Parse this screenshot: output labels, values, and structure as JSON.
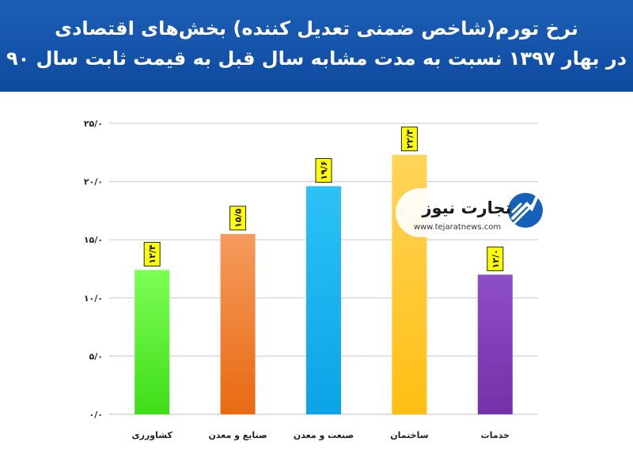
{
  "header": {
    "title_line1": "نرخ تورم(شاخص ضمنی تعدیل کننده) بخش‌های اقتصادی",
    "title_line2": "در بهار ۱۳۹۷  نسبت به مدت مشابه سال قبل به قیمت ثابت سال ۹۰"
  },
  "logo": {
    "brand": "تجارت نیوز",
    "url": "www.tejaratnews.com"
  },
  "chart_data": {
    "type": "bar",
    "categories": [
      "کشاورزی",
      "صنایع و معدن",
      "صنعت و معدن",
      "ساختمان",
      "خدمات"
    ],
    "values": [
      12.4,
      15.5,
      19.6,
      22.3,
      12.0
    ],
    "data_labels": [
      "۱۲/۴",
      "۱۵/۵",
      "۱۹/۶",
      "۲۲/۳",
      "۱۲/۰"
    ],
    "yticks": [
      0,
      5,
      10,
      15,
      20,
      25
    ],
    "ytick_labels": [
      "۰/۰",
      "۵/۰",
      "۱۰/۰",
      "۱۵/۰",
      "۲۰/۰",
      "۲۵/۰"
    ],
    "ylim": [
      0,
      25
    ],
    "grid": true,
    "bar_colors": [
      [
        "#7dff55",
        "#3fdc1a"
      ],
      [
        "#f59b5e",
        "#e86a12"
      ],
      [
        "#2cc2f7",
        "#0aa3e6"
      ],
      [
        "#ffd45a",
        "#ffbe12"
      ],
      [
        "#8e4ec6",
        "#7431a8"
      ]
    ],
    "label_bg": "#ffff00",
    "label_border": "#222222"
  }
}
